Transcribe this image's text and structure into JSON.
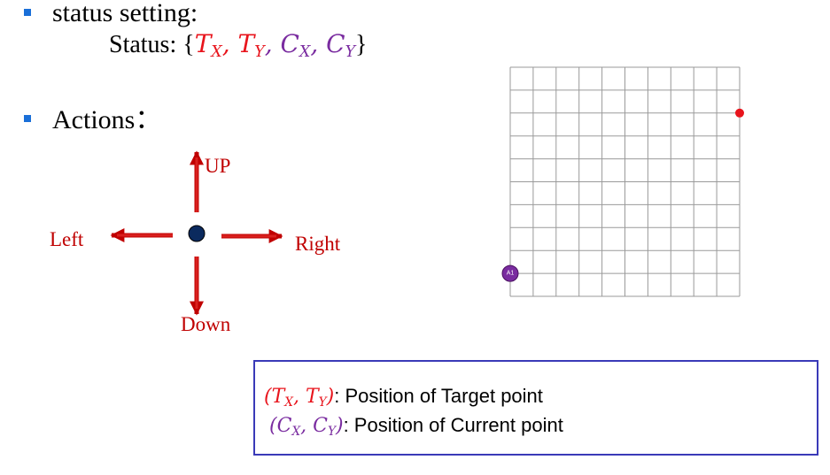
{
  "colors": {
    "bullet": "#1a6fd8",
    "target": "#e8141c",
    "current": "#7a2ca0",
    "arrow": "#c00000",
    "arrow_fill": "#d9201e",
    "center_dot": "#0b2a5e",
    "grid_line": "#9a9a9a",
    "legend_border": "#3a3ab8"
  },
  "bullet1": {
    "text": "status setting:",
    "status_prefix": "Status: {",
    "tx": "T",
    "tx_sub": "X",
    "ty": "T",
    "ty_sub": "Y",
    "cx": "C",
    "cx_sub": "X",
    "cy": "C",
    "cy_sub": "Y",
    "comma": ", ",
    "close": "}"
  },
  "bullet2": {
    "text": "Actions："
  },
  "actions": {
    "up": "UP",
    "down": "Down",
    "left": "Left",
    "right": "Right"
  },
  "grid": {
    "cols": 10,
    "rows": 10,
    "target_cell": {
      "col": 10,
      "row": 8
    },
    "current_cell": {
      "col": 0,
      "row": 1
    },
    "agent_label": "A1"
  },
  "legend": {
    "target_math_open": "(",
    "target_math_tx": "T",
    "target_math_tx_sub": "X",
    "target_math_sep": ", ",
    "target_math_ty": "T",
    "target_math_ty_sub": "Y",
    "target_math_close": ")",
    "target_desc": ": Position of Target point",
    "current_math_open": "(",
    "current_math_cx": "C",
    "current_math_cx_sub": "X",
    "current_math_sep": ", ",
    "current_math_cy": "C",
    "current_math_cy_sub": "Y",
    "current_math_close": ")",
    "current_desc": ": Position of Current point"
  }
}
